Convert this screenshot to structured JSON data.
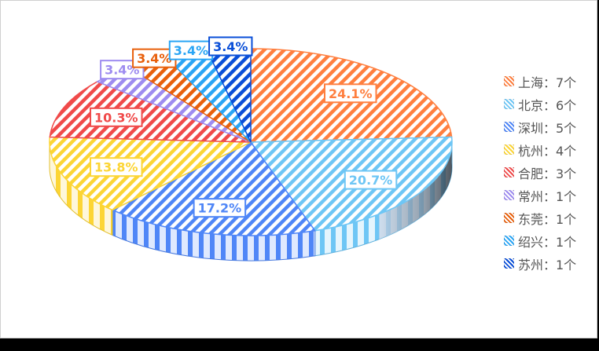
{
  "chart_data": {
    "type": "pie",
    "style": "3d",
    "separator": "：",
    "unit": "个",
    "slices": [
      {
        "label": "上海",
        "value": 7,
        "pct": "24.1%",
        "color": "#ff7f3f"
      },
      {
        "label": "北京",
        "value": 6,
        "pct": "20.7%",
        "color": "#6ec6f5"
      },
      {
        "label": "深圳",
        "value": 5,
        "pct": "17.2%",
        "color": "#4f86f7"
      },
      {
        "label": "杭州",
        "value": 4,
        "pct": "13.8%",
        "color": "#fcd535"
      },
      {
        "label": "合肥",
        "value": 3,
        "pct": "10.3%",
        "color": "#f04a4a"
      },
      {
        "label": "常州",
        "value": 1,
        "pct": "3.4%",
        "color": "#9e8cf0"
      },
      {
        "label": "东莞",
        "value": 1,
        "pct": "3.4%",
        "color": "#e8600c"
      },
      {
        "label": "绍兴",
        "value": 1,
        "pct": "3.4%",
        "color": "#2aa5f5"
      },
      {
        "label": "苏州",
        "value": 1,
        "pct": "3.4%",
        "color": "#0a4fd8"
      }
    ],
    "legend_position": "right"
  }
}
